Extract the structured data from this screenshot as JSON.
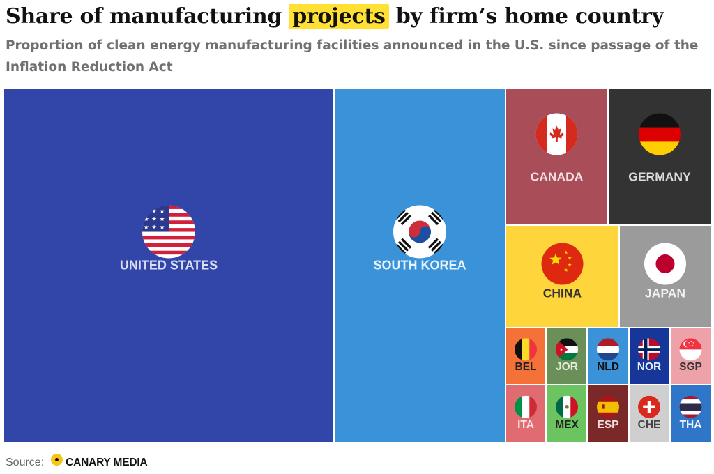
{
  "title": {
    "before": "Share of manufacturing",
    "highlight": "projects",
    "after": "by firm’s home country"
  },
  "subtitle": "Proportion of clean energy manufacturing facilities announced in the U.S. since passage of the Inflation Reduction Act",
  "source": {
    "label": "Source:",
    "brand": "CANARY MEDIA"
  },
  "chart_data": {
    "type": "treemap",
    "title": "Share of manufacturing projects by firm’s home country",
    "subtitle": "Proportion of clean energy manufacturing facilities announced in the U.S. since passage of the Inflation Reduction Act",
    "share_percent_approx": [
      {
        "code": "USA",
        "label": "UNITED STATES",
        "value": 45.2
      },
      {
        "code": "KOR",
        "label": "SOUTH KOREA",
        "value": 23.4
      },
      {
        "code": "CAN",
        "label": "CANADA",
        "value": 4.6
      },
      {
        "code": "DEU",
        "label": "GERMANY",
        "value": 4.6
      },
      {
        "code": "CHN",
        "label": "CHINA",
        "value": 4.6
      },
      {
        "code": "JPN",
        "label": "JAPAN",
        "value": 4.0
      },
      {
        "code": "BEL",
        "label": "BEL",
        "value": 1.3
      },
      {
        "code": "JOR",
        "label": "JOR",
        "value": 1.3
      },
      {
        "code": "NLD",
        "label": "NLD",
        "value": 1.3
      },
      {
        "code": "NOR",
        "label": "NOR",
        "value": 1.3
      },
      {
        "code": "SGP",
        "label": "SGP",
        "value": 1.3
      },
      {
        "code": "ITA",
        "label": "ITA",
        "value": 1.3
      },
      {
        "code": "MEX",
        "label": "MEX",
        "value": 1.3
      },
      {
        "code": "ESP",
        "label": "ESP",
        "value": 1.3
      },
      {
        "code": "CHE",
        "label": "CHE",
        "value": 1.3
      },
      {
        "code": "THA",
        "label": "THA",
        "value": 1.3
      }
    ],
    "colors": {
      "USA": "#3146a8",
      "KOR": "#3a93d8",
      "CAN": "#a94d58",
      "DEU": "#333333",
      "CHN": "#fed63b",
      "JPN": "#9b9b9b",
      "BEL": "#f47238",
      "JOR": "#6b8f58",
      "NLD": "#3a93d8",
      "NOR": "#16369a",
      "SGP": "#eca2a8",
      "ITA": "#e06b70",
      "MEX": "#6bc45f",
      "ESP": "#7a2828",
      "CHE": "#cfcfcf",
      "THA": "#2f75c8"
    },
    "label_colors": {
      "USA": "#dbe0f5",
      "KOR": "#e6f2fb",
      "CAN": "#f5e1e4",
      "DEU": "#dcdcdc",
      "CHN": "#333333",
      "JPN": "#f2f2f2",
      "BEL": "#222222",
      "JOR": "#e4ecdc",
      "NLD": "#111111",
      "NOR": "#e6ebf7",
      "SGP": "#333333",
      "ITA": "#fbe3e4",
      "MEX": "#222222",
      "ESP": "#f5dede",
      "CHE": "#444444",
      "THA": "#eef4fb"
    }
  }
}
